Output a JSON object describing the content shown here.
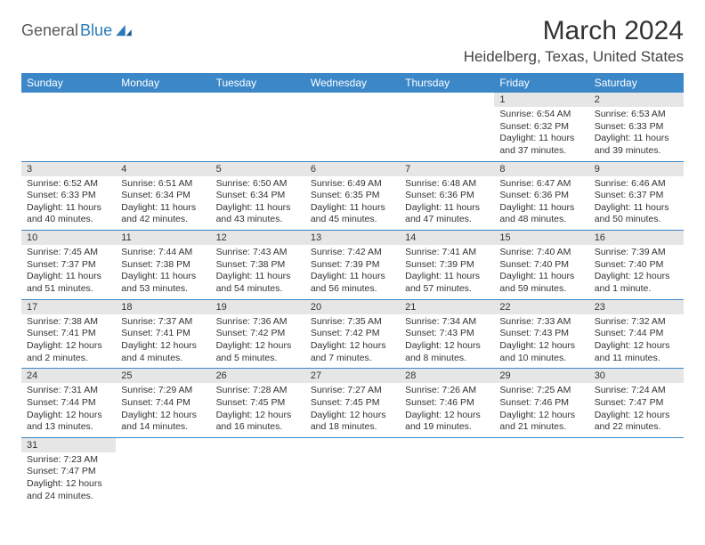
{
  "branding": {
    "logo_part1": "General",
    "logo_part2": "Blue",
    "logo_color1": "#5a5a5a",
    "logo_color2": "#2a7ab8"
  },
  "title": "March 2024",
  "location": "Heidelberg, Texas, United States",
  "header_bg": "#3b87c8",
  "header_text_color": "#ffffff",
  "daynum_bg": "#e6e6e6",
  "border_color": "#3b87c8",
  "background_color": "#ffffff",
  "font_family": "Arial",
  "day_headers": [
    "Sunday",
    "Monday",
    "Tuesday",
    "Wednesday",
    "Thursday",
    "Friday",
    "Saturday"
  ],
  "weeks": [
    [
      null,
      null,
      null,
      null,
      null,
      {
        "n": "1",
        "sunrise": "Sunrise: 6:54 AM",
        "sunset": "Sunset: 6:32 PM",
        "daylight": "Daylight: 11 hours and 37 minutes."
      },
      {
        "n": "2",
        "sunrise": "Sunrise: 6:53 AM",
        "sunset": "Sunset: 6:33 PM",
        "daylight": "Daylight: 11 hours and 39 minutes."
      }
    ],
    [
      {
        "n": "3",
        "sunrise": "Sunrise: 6:52 AM",
        "sunset": "Sunset: 6:33 PM",
        "daylight": "Daylight: 11 hours and 40 minutes."
      },
      {
        "n": "4",
        "sunrise": "Sunrise: 6:51 AM",
        "sunset": "Sunset: 6:34 PM",
        "daylight": "Daylight: 11 hours and 42 minutes."
      },
      {
        "n": "5",
        "sunrise": "Sunrise: 6:50 AM",
        "sunset": "Sunset: 6:34 PM",
        "daylight": "Daylight: 11 hours and 43 minutes."
      },
      {
        "n": "6",
        "sunrise": "Sunrise: 6:49 AM",
        "sunset": "Sunset: 6:35 PM",
        "daylight": "Daylight: 11 hours and 45 minutes."
      },
      {
        "n": "7",
        "sunrise": "Sunrise: 6:48 AM",
        "sunset": "Sunset: 6:36 PM",
        "daylight": "Daylight: 11 hours and 47 minutes."
      },
      {
        "n": "8",
        "sunrise": "Sunrise: 6:47 AM",
        "sunset": "Sunset: 6:36 PM",
        "daylight": "Daylight: 11 hours and 48 minutes."
      },
      {
        "n": "9",
        "sunrise": "Sunrise: 6:46 AM",
        "sunset": "Sunset: 6:37 PM",
        "daylight": "Daylight: 11 hours and 50 minutes."
      }
    ],
    [
      {
        "n": "10",
        "sunrise": "Sunrise: 7:45 AM",
        "sunset": "Sunset: 7:37 PM",
        "daylight": "Daylight: 11 hours and 51 minutes."
      },
      {
        "n": "11",
        "sunrise": "Sunrise: 7:44 AM",
        "sunset": "Sunset: 7:38 PM",
        "daylight": "Daylight: 11 hours and 53 minutes."
      },
      {
        "n": "12",
        "sunrise": "Sunrise: 7:43 AM",
        "sunset": "Sunset: 7:38 PM",
        "daylight": "Daylight: 11 hours and 54 minutes."
      },
      {
        "n": "13",
        "sunrise": "Sunrise: 7:42 AM",
        "sunset": "Sunset: 7:39 PM",
        "daylight": "Daylight: 11 hours and 56 minutes."
      },
      {
        "n": "14",
        "sunrise": "Sunrise: 7:41 AM",
        "sunset": "Sunset: 7:39 PM",
        "daylight": "Daylight: 11 hours and 57 minutes."
      },
      {
        "n": "15",
        "sunrise": "Sunrise: 7:40 AM",
        "sunset": "Sunset: 7:40 PM",
        "daylight": "Daylight: 11 hours and 59 minutes."
      },
      {
        "n": "16",
        "sunrise": "Sunrise: 7:39 AM",
        "sunset": "Sunset: 7:40 PM",
        "daylight": "Daylight: 12 hours and 1 minute."
      }
    ],
    [
      {
        "n": "17",
        "sunrise": "Sunrise: 7:38 AM",
        "sunset": "Sunset: 7:41 PM",
        "daylight": "Daylight: 12 hours and 2 minutes."
      },
      {
        "n": "18",
        "sunrise": "Sunrise: 7:37 AM",
        "sunset": "Sunset: 7:41 PM",
        "daylight": "Daylight: 12 hours and 4 minutes."
      },
      {
        "n": "19",
        "sunrise": "Sunrise: 7:36 AM",
        "sunset": "Sunset: 7:42 PM",
        "daylight": "Daylight: 12 hours and 5 minutes."
      },
      {
        "n": "20",
        "sunrise": "Sunrise: 7:35 AM",
        "sunset": "Sunset: 7:42 PM",
        "daylight": "Daylight: 12 hours and 7 minutes."
      },
      {
        "n": "21",
        "sunrise": "Sunrise: 7:34 AM",
        "sunset": "Sunset: 7:43 PM",
        "daylight": "Daylight: 12 hours and 8 minutes."
      },
      {
        "n": "22",
        "sunrise": "Sunrise: 7:33 AM",
        "sunset": "Sunset: 7:43 PM",
        "daylight": "Daylight: 12 hours and 10 minutes."
      },
      {
        "n": "23",
        "sunrise": "Sunrise: 7:32 AM",
        "sunset": "Sunset: 7:44 PM",
        "daylight": "Daylight: 12 hours and 11 minutes."
      }
    ],
    [
      {
        "n": "24",
        "sunrise": "Sunrise: 7:31 AM",
        "sunset": "Sunset: 7:44 PM",
        "daylight": "Daylight: 12 hours and 13 minutes."
      },
      {
        "n": "25",
        "sunrise": "Sunrise: 7:29 AM",
        "sunset": "Sunset: 7:44 PM",
        "daylight": "Daylight: 12 hours and 14 minutes."
      },
      {
        "n": "26",
        "sunrise": "Sunrise: 7:28 AM",
        "sunset": "Sunset: 7:45 PM",
        "daylight": "Daylight: 12 hours and 16 minutes."
      },
      {
        "n": "27",
        "sunrise": "Sunrise: 7:27 AM",
        "sunset": "Sunset: 7:45 PM",
        "daylight": "Daylight: 12 hours and 18 minutes."
      },
      {
        "n": "28",
        "sunrise": "Sunrise: 7:26 AM",
        "sunset": "Sunset: 7:46 PM",
        "daylight": "Daylight: 12 hours and 19 minutes."
      },
      {
        "n": "29",
        "sunrise": "Sunrise: 7:25 AM",
        "sunset": "Sunset: 7:46 PM",
        "daylight": "Daylight: 12 hours and 21 minutes."
      },
      {
        "n": "30",
        "sunrise": "Sunrise: 7:24 AM",
        "sunset": "Sunset: 7:47 PM",
        "daylight": "Daylight: 12 hours and 22 minutes."
      }
    ],
    [
      {
        "n": "31",
        "sunrise": "Sunrise: 7:23 AM",
        "sunset": "Sunset: 7:47 PM",
        "daylight": "Daylight: 12 hours and 24 minutes."
      },
      null,
      null,
      null,
      null,
      null,
      null
    ]
  ]
}
